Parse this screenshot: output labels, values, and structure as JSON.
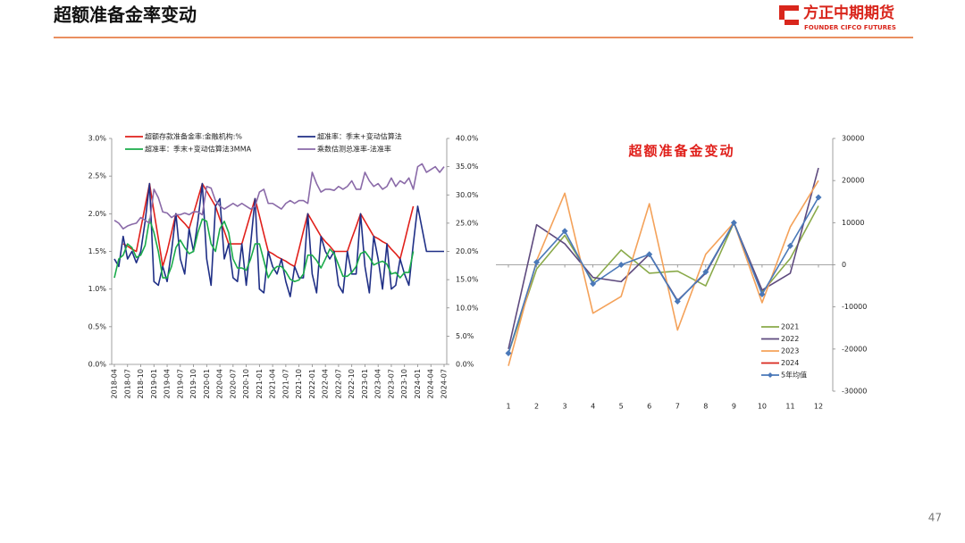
{
  "header": {
    "title": "超额准备金率变动",
    "logo_name": "方正中期期货",
    "logo_sub": "FOUNDER CIFCO FUTURES"
  },
  "page_number": "47",
  "chart_data": [
    {
      "type": "line",
      "categories": [
        "2018-04",
        null,
        null,
        "2018-07",
        null,
        null,
        "2018-10",
        null,
        null,
        "2019-01",
        null,
        null,
        "2019-04",
        null,
        null,
        "2019-07",
        null,
        null,
        "2019-10",
        null,
        null,
        "2020-01",
        null,
        null,
        "2020-04",
        null,
        null,
        "2020-07",
        null,
        null,
        "2020-10",
        null,
        null,
        "2021-01",
        null,
        null,
        "2021-04",
        null,
        null,
        "2021-07",
        null,
        null,
        "2021-10",
        null,
        null,
        "2022-01",
        null,
        null,
        "2022-04",
        null,
        null,
        "2022-07",
        null,
        null,
        "2022-10",
        null,
        null,
        "2023-01",
        null,
        null,
        "2023-04",
        null,
        null,
        "2023-07",
        null,
        null,
        "2023-10",
        null,
        null,
        "2024-01",
        null,
        null,
        "2024-04",
        null,
        null,
        "2024-07"
      ],
      "ylim": [
        0,
        3
      ],
      "yticks": [
        {
          "value": 0,
          "label": "0.0%"
        },
        {
          "value": 0.5,
          "label": "0.5%"
        },
        {
          "value": 1,
          "label": "1.0%"
        },
        {
          "value": 1.5,
          "label": "1.5%"
        },
        {
          "value": 2,
          "label": "2.0%"
        },
        {
          "value": 2.5,
          "label": "2.5%"
        },
        {
          "value": 3,
          "label": "3.0%"
        }
      ],
      "y2lim": [
        0,
        40
      ],
      "y2ticks": [
        {
          "value": 0,
          "label": "0.0%"
        },
        {
          "value": 5,
          "label": "5.0%"
        },
        {
          "value": 10,
          "label": "10.0%"
        },
        {
          "value": 15,
          "label": "15.0%"
        },
        {
          "value": 20,
          "label": "20.0%"
        },
        {
          "value": 25,
          "label": "25.0%"
        },
        {
          "value": 30,
          "label": "30.0%"
        },
        {
          "value": 35,
          "label": "35.0%"
        },
        {
          "value": 40,
          "label": "40.0%"
        }
      ],
      "series": [
        {
          "name": "超额存款准备金率:金融机构:%",
          "color": "#e0201b",
          "values": [
            null,
            null,
            1.6,
            1.57,
            1.53,
            1.5,
            1.8,
            2.1,
            2.4,
            2.03,
            1.67,
            1.3,
            1.5,
            1.75,
            2.0,
            1.93,
            1.87,
            1.8,
            2.0,
            2.2,
            2.4,
            2.3,
            2.2,
            2.1,
            1.93,
            1.77,
            1.6,
            1.6,
            1.6,
            1.6,
            1.8,
            2.0,
            2.2,
            1.97,
            1.73,
            1.5,
            1.47,
            1.43,
            1.4,
            1.37,
            1.33,
            1.3,
            1.53,
            1.77,
            2.0,
            1.9,
            1.8,
            1.7,
            1.63,
            1.57,
            1.5,
            1.5,
            1.5,
            1.5,
            1.67,
            1.83,
            2.0,
            1.9,
            1.8,
            1.7,
            1.67,
            1.63,
            1.6,
            1.53,
            1.47,
            1.4,
            1.63,
            1.87,
            2.1,
            null,
            null,
            null,
            null,
            null,
            null,
            null
          ]
        },
        {
          "name": "超准率：季末+变动估算法",
          "color": "#1f2f86",
          "values": [
            1.4,
            1.3,
            1.7,
            1.4,
            1.5,
            1.35,
            1.5,
            1.9,
            2.4,
            1.1,
            1.05,
            1.3,
            1.1,
            1.5,
            2.0,
            1.4,
            1.2,
            1.8,
            1.5,
            1.9,
            2.4,
            1.4,
            1.05,
            2.1,
            2.2,
            1.4,
            1.6,
            1.15,
            1.1,
            1.6,
            1.05,
            1.6,
            2.2,
            1.0,
            0.95,
            1.5,
            1.3,
            1.2,
            1.4,
            1.1,
            0.9,
            1.3,
            1.15,
            1.15,
            2.0,
            1.2,
            0.95,
            1.7,
            1.5,
            1.4,
            1.5,
            1.05,
            0.95,
            1.5,
            1.2,
            1.2,
            2.0,
            1.3,
            0.95,
            1.7,
            1.4,
            1.0,
            1.6,
            1.0,
            1.05,
            1.4,
            1.2,
            1.05,
            1.6,
            2.1,
            1.8,
            1.5,
            1.5,
            1.5,
            1.5,
            1.5
          ]
        },
        {
          "name": "超准率：季末+变动估算法3MMA",
          "color": "#1aab4a",
          "values": [
            1.15,
            1.4,
            1.45,
            1.6,
            1.55,
            1.42,
            1.45,
            1.58,
            1.93,
            1.75,
            1.5,
            1.15,
            1.15,
            1.3,
            1.55,
            1.65,
            1.55,
            1.47,
            1.5,
            1.75,
            1.93,
            1.9,
            1.6,
            1.5,
            1.8,
            1.9,
            1.75,
            1.4,
            1.28,
            1.28,
            1.25,
            1.4,
            1.6,
            1.6,
            1.38,
            1.15,
            1.25,
            1.3,
            1.3,
            1.23,
            1.13,
            1.1,
            1.12,
            1.2,
            1.45,
            1.45,
            1.38,
            1.28,
            1.4,
            1.53,
            1.47,
            1.32,
            1.17,
            1.17,
            1.22,
            1.3,
            1.47,
            1.5,
            1.42,
            1.32,
            1.35,
            1.37,
            1.33,
            1.2,
            1.22,
            1.15,
            1.22,
            1.22,
            1.5,
            null,
            null,
            null,
            null,
            null,
            null,
            null
          ]
        },
        {
          "name": "乘数估测总准率-法准率",
          "color": "#8a6aa8",
          "axis": "y2",
          "values": [
            25.5,
            25,
            24,
            24.5,
            24.8,
            25,
            26,
            25.5,
            25,
            31,
            29.5,
            27,
            26.8,
            26,
            26.5,
            26.5,
            26.8,
            26.5,
            27,
            27,
            26.5,
            31.5,
            31.2,
            29,
            28,
            27.5,
            28,
            28.5,
            28,
            28.5,
            28,
            27.5,
            28,
            30.5,
            31,
            28.5,
            28.5,
            28,
            27.5,
            28.5,
            29,
            28.5,
            29,
            29,
            28.5,
            34,
            32,
            30.5,
            31,
            31,
            30.8,
            31.5,
            31,
            31.5,
            32.5,
            31,
            31,
            34,
            32.5,
            31.5,
            32,
            31,
            31.5,
            33,
            31.5,
            32.5,
            32,
            33,
            31,
            35,
            35.5,
            34,
            34.5,
            35,
            34,
            35
          ]
        }
      ]
    },
    {
      "type": "line",
      "title": "超额准备金变动",
      "categories": [
        1,
        2,
        3,
        4,
        5,
        6,
        7,
        8,
        9,
        10,
        11,
        12
      ],
      "ylim": [
        -30000,
        30000
      ],
      "yticks": [
        -30000,
        -20000,
        -10000,
        0,
        10000,
        20000,
        30000
      ],
      "yaxis_side": "right",
      "series": [
        {
          "name": "2021",
          "color": "#8aaa4a",
          "values": [
            -21000,
            -1000,
            7000,
            -4000,
            3500,
            -2000,
            -1500,
            -5000,
            10000,
            -6500,
            1500,
            14000
          ]
        },
        {
          "name": "2022",
          "color": "#5e4a7e",
          "values": [
            -20000,
            9500,
            5000,
            -3000,
            -4000,
            2500,
            -8500,
            -2000,
            10000,
            -6000,
            -2000,
            23000
          ]
        },
        {
          "name": "2023",
          "color": "#f4a25a",
          "values": [
            -24000,
            1000,
            17000,
            -11500,
            -7500,
            14500,
            -15500,
            2500,
            10000,
            -9000,
            9000,
            20000
          ]
        },
        {
          "name": "2024",
          "color": "#d9261c",
          "values": [
            null,
            null,
            null,
            null,
            null,
            null,
            null,
            null,
            null,
            null,
            null,
            null
          ]
        },
        {
          "name": "5年均值",
          "color": "#4a78b8",
          "marker": "diamond",
          "values": [
            -21000,
            600,
            8000,
            -4500,
            0,
            2500,
            -8700,
            -1700,
            10000,
            -7000,
            4500,
            16000
          ]
        }
      ]
    }
  ]
}
